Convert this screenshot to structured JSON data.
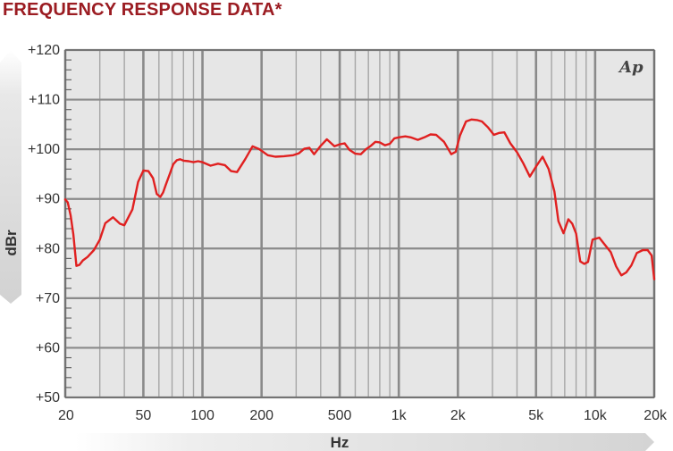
{
  "title": "FREQUENCY RESPONSE DATA*",
  "logo_text": "Ap",
  "colors": {
    "title": "#9b1c22",
    "line": "#e02020",
    "plot_bg": "#e6e6e6",
    "grid": "#9a9a9a"
  },
  "chart_data": {
    "type": "line",
    "title": "FREQUENCY RESPONSE DATA*",
    "xlabel": "Hz",
    "ylabel": "dBr",
    "x_scale": "log",
    "xlim": [
      20,
      20000
    ],
    "ylim": [
      50,
      120
    ],
    "grid": true,
    "x_ticks": [
      20,
      50,
      100,
      200,
      500,
      1000,
      2000,
      5000,
      10000,
      20000
    ],
    "x_tick_labels": [
      "20",
      "50",
      "100",
      "200",
      "500",
      "1k",
      "2k",
      "5k",
      "10k",
      "20k"
    ],
    "y_ticks": [
      50,
      60,
      70,
      80,
      90,
      100,
      110,
      120
    ],
    "y_tick_labels": [
      "+50",
      "+60",
      "+70",
      "+80",
      "+90",
      "+100",
      "+110",
      "+120"
    ],
    "series": [
      {
        "x": [
          20,
          20.6,
          21.3,
          22,
          22.8,
          23.6,
          24.6,
          26,
          28,
          30,
          32,
          35,
          38,
          40,
          44,
          47,
          50,
          53,
          56,
          58.5,
          61,
          63,
          65,
          68,
          71,
          74,
          77,
          80,
          85,
          90,
          95,
          100,
          110,
          120,
          130,
          140,
          150,
          165,
          180,
          195,
          215,
          235,
          260,
          290,
          310,
          330,
          350,
          370,
          400,
          430,
          470,
          500,
          530,
          560,
          600,
          640,
          680,
          720,
          760,
          800,
          850,
          900,
          950,
          1000,
          1080,
          1150,
          1250,
          1350,
          1450,
          1550,
          1700,
          1850,
          1950,
          2050,
          2200,
          2350,
          2500,
          2650,
          2850,
          3050,
          3250,
          3450,
          3700,
          4000,
          4300,
          4650,
          5000,
          5400,
          5800,
          6200,
          6500,
          6900,
          7300,
          7650,
          8000,
          8400,
          8800,
          9200,
          9700,
          10500,
          11300,
          12000,
          12800,
          13600,
          14400,
          15300,
          16300,
          17500,
          18500,
          19400,
          20000
        ],
        "y": [
          89.9,
          89.3,
          86.7,
          82.8,
          76.5,
          76.7,
          77.6,
          78.3,
          79.7,
          81.8,
          85.1,
          86.3,
          85.0,
          84.7,
          87.9,
          93.4,
          95.7,
          95.6,
          94.2,
          91.0,
          90.4,
          91.3,
          92.8,
          94.9,
          97.0,
          97.8,
          98.0,
          97.7,
          97.6,
          97.4,
          97.6,
          97.4,
          96.7,
          97.1,
          96.8,
          95.6,
          95.4,
          98.0,
          100.6,
          100.0,
          98.8,
          98.5,
          98.6,
          98.8,
          99.2,
          100.1,
          100.3,
          99.0,
          100.7,
          102.0,
          100.6,
          101.0,
          101.2,
          99.9,
          99.1,
          99.0,
          100.0,
          100.7,
          101.5,
          101.4,
          100.8,
          101.1,
          102.2,
          102.4,
          102.6,
          102.4,
          101.9,
          102.4,
          103.0,
          102.9,
          101.5,
          99.0,
          99.5,
          102.8,
          105.6,
          106.0,
          105.9,
          105.6,
          104.4,
          102.9,
          103.3,
          103.4,
          101.2,
          99.4,
          97.2,
          94.5,
          96.5,
          98.5,
          96.0,
          91.5,
          85.5,
          83.1,
          85.9,
          85.0,
          83.0,
          77.4,
          76.9,
          77.3,
          81.8,
          82.2,
          80.6,
          79.3,
          76.4,
          74.6,
          75.2,
          76.6,
          79.1,
          79.7,
          79.7,
          78.6,
          73.8
        ]
      }
    ]
  }
}
